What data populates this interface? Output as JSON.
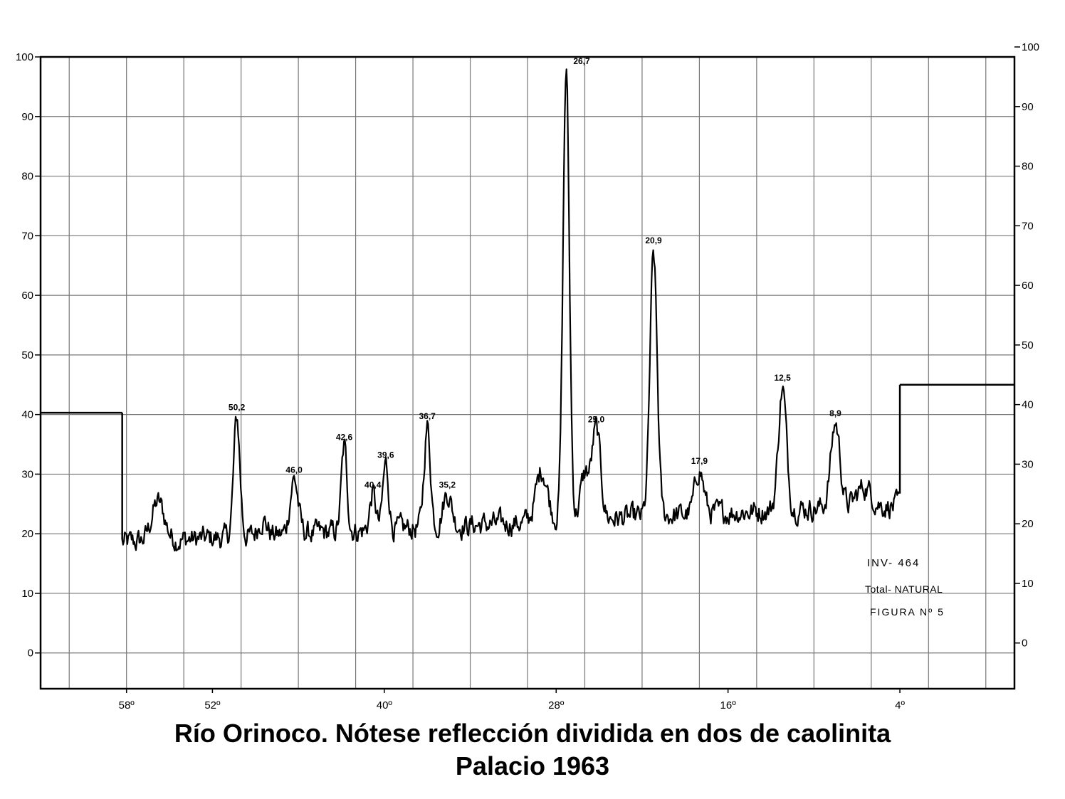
{
  "chart_data": {
    "type": "line",
    "left_axis_ticks": [
      "0",
      "10",
      "20",
      "30",
      "40",
      "50",
      "60",
      "70",
      "80",
      "90",
      "100"
    ],
    "right_axis_ticks": [
      "0",
      "10",
      "20",
      "30",
      "40",
      "50",
      "60",
      "70",
      "80",
      "90",
      "100"
    ],
    "x_tick_labels": [
      {
        "label": "58º",
        "value": 58
      },
      {
        "label": "52º",
        "value": 52
      },
      {
        "label": "40º",
        "value": 40
      },
      {
        "label": "28º",
        "value": 28
      },
      {
        "label": "16º",
        "value": 16
      },
      {
        "label": "4º",
        "value": 4
      }
    ],
    "xlim": [
      64,
      -4
    ],
    "ylim": [
      -6,
      100
    ],
    "x_reversed": true,
    "grid": true,
    "baseline_markers": [
      {
        "x_from": 64,
        "x_to": 58.3,
        "y": 40.3
      },
      {
        "x_from": 4.0,
        "x_to": -4,
        "y": 45
      }
    ],
    "trace_range": [
      58.3,
      4.0
    ],
    "peaks": [
      {
        "label": "26,7",
        "x": 27.3,
        "y": 100,
        "w": 0.22
      },
      {
        "label": "20,9",
        "x": 21.2,
        "y": 68,
        "w": 0.25
      },
      {
        "label": "50,2",
        "x": 50.3,
        "y": 40,
        "w": 0.22
      },
      {
        "label": "12,5",
        "x": 12.2,
        "y": 45,
        "w": 0.28
      },
      {
        "label": "8,9",
        "x": 8.5,
        "y": 39,
        "w": 0.32
      },
      {
        "label": "36,7",
        "x": 37.0,
        "y": 38.5,
        "w": 0.22
      },
      {
        "label": "25,0",
        "x": 25.2,
        "y": 38,
        "w": 0.3
      },
      {
        "label": "42,6",
        "x": 42.8,
        "y": 35,
        "w": 0.2
      },
      {
        "label": "39,6",
        "x": 39.9,
        "y": 32,
        "w": 0.2
      },
      {
        "label": "46,0",
        "x": 46.3,
        "y": 29.5,
        "w": 0.28
      },
      {
        "label": "17,9",
        "x": 18.0,
        "y": 31,
        "w": 0.3
      },
      {
        "label": "40,4",
        "x": 40.8,
        "y": 27,
        "w": 0.2
      },
      {
        "label": "35,2",
        "x": 35.6,
        "y": 27,
        "w": 0.3
      }
    ],
    "extra_bumps": [
      {
        "x": 55.8,
        "y": 25.5,
        "w": 0.45
      },
      {
        "x": 48.5,
        "y": 22.5,
        "w": 0.3
      },
      {
        "x": 29.0,
        "y": 31,
        "w": 0.4
      },
      {
        "x": 26.0,
        "y": 30,
        "w": 0.3
      },
      {
        "x": 6.5,
        "y": 28,
        "w": 0.5
      }
    ],
    "sample_label": "INV- 464",
    "treatment_label": "Total- NATURAL",
    "figure_label": "FIGURA Nº 5"
  },
  "caption": {
    "line1": "Río Orinoco. Nótese reflección dividida en dos de caolinita",
    "line2": "Palacio 1963"
  }
}
